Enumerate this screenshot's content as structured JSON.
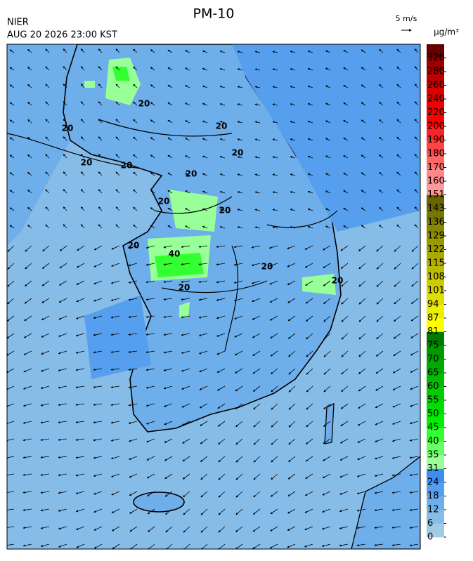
{
  "header": {
    "title": "PM-10",
    "agency": "NIER",
    "timestamp": "AUG 20 2026 23:00 KST",
    "wind_scale": "5 m/s"
  },
  "colorbar": {
    "unit": "μg/m³",
    "ticks": [
      0,
      6,
      12,
      18,
      24,
      31,
      35,
      40,
      45,
      50,
      55,
      60,
      65,
      70,
      75,
      81,
      87,
      94,
      101,
      108,
      115,
      122,
      129,
      136,
      143,
      151,
      160,
      170,
      180,
      190,
      200,
      220,
      240,
      260,
      280,
      320
    ],
    "colors": [
      "#9fcbe3",
      "#86bde8",
      "#6eaeea",
      "#569fee",
      "#3b8ff2",
      "#99ff99",
      "#66ff66",
      "#33ff33",
      "#00f000",
      "#00de00",
      "#00cc00",
      "#00bb00",
      "#00aa00",
      "#009900",
      "#007a00",
      "#ffff00",
      "#eeee00",
      "#dede00",
      "#cccc00",
      "#bbbb00",
      "#aaaa00",
      "#999900",
      "#888800",
      "#777700",
      "#666600",
      "#ff9999",
      "#ff8888",
      "#ff6666",
      "#ff4444",
      "#ff2222",
      "#ff0000",
      "#ee0000",
      "#dd0000",
      "#bb0000",
      "#990000",
      "#660000"
    ]
  },
  "map": {
    "contour_labels": [
      "20",
      "20",
      "20",
      "20",
      "20",
      "20",
      "20",
      "20",
      "20",
      "20",
      "20",
      "40",
      "20",
      "20"
    ]
  }
}
